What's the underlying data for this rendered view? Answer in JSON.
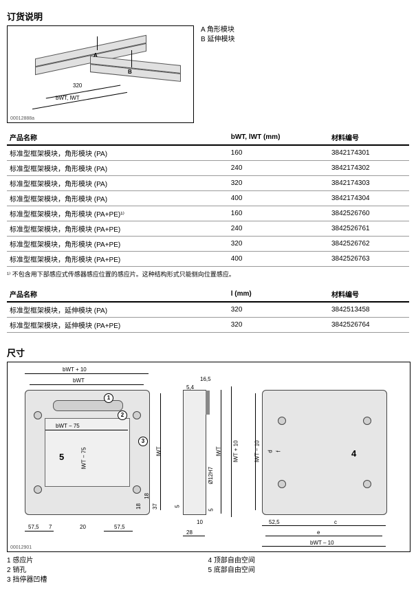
{
  "section_order": {
    "title": "订货说明"
  },
  "top_legend": {
    "a": "A 角形模块",
    "b": "B 延伸模块"
  },
  "top_diagram": {
    "ref": "00012888a",
    "label_a": "A",
    "label_b": "B",
    "dim_320": "320",
    "dim_bwt_lwt": "bWT, lWT"
  },
  "table1": {
    "headers": {
      "name": "产品名称",
      "dim": "bWT, lWT (mm)",
      "part": "材料编号"
    },
    "rows": [
      {
        "name": "标准型框架模块，角形模块 (PA)",
        "dim": "160",
        "part": "3842174301"
      },
      {
        "name": "标准型框架模块，角形模块 (PA)",
        "dim": "240",
        "part": "3842174302"
      },
      {
        "name": "标准型框架模块，角形模块 (PA)",
        "dim": "320",
        "part": "3842174303"
      },
      {
        "name": "标准型框架模块，角形模块 (PA)",
        "dim": "400",
        "part": "3842174304"
      },
      {
        "name": "标准型框架模块，角形模块 (PA+PE)¹⁾",
        "dim": "160",
        "part": "3842526760"
      },
      {
        "name": "标准型框架模块，角形模块 (PA+PE)",
        "dim": "240",
        "part": "3842526761"
      },
      {
        "name": "标准型框架模块，角形模块 (PA+PE)",
        "dim": "320",
        "part": "3842526762"
      },
      {
        "name": "标准型框架模块，角形模块 (PA+PE)",
        "dim": "400",
        "part": "3842526763"
      }
    ]
  },
  "footnote1": "¹⁾ 不包含用下部感应式传感器感应位置的感应片。这种结构形式只能侧向位置感应。",
  "table2": {
    "headers": {
      "name": "产品名称",
      "dim": "l (mm)",
      "part": "材料编号"
    },
    "rows": [
      {
        "name": "标准型框架模块，延伸模块 (PA)",
        "dim": "320",
        "part": "3842513458"
      },
      {
        "name": "标准型框架模块，延伸模块 (PA+PE)",
        "dim": "320",
        "part": "3842526764"
      }
    ]
  },
  "section_dims": {
    "title": "尺寸"
  },
  "dims_diagram": {
    "ref": "00012901",
    "labels": {
      "bwt_plus10": "bWT + 10",
      "bwt": "bWT",
      "bwt_minus75": "bWT − 75",
      "lwt": "lWT",
      "lwt_minus75": "lWT − 75",
      "lwt_plus10": "lWT + 10",
      "lwt_minus10": "lWT − 10",
      "bwt_minus10": "bWT – 10",
      "c1": "1",
      "c2": "2",
      "c3": "3",
      "c4": "4",
      "c5": "5",
      "n16_5": "16,5",
      "n5_4": "5,4",
      "n57_5a": "57,5",
      "n57_5b": "57,5",
      "n7": "7",
      "n20": "20",
      "n18a": "18",
      "n18b": "18",
      "n37": "37",
      "n5a": "5",
      "n5b": "5",
      "n10": "10",
      "n28": "28",
      "d12h7": "Ø12H7",
      "d": "d",
      "f": "f",
      "c": "c",
      "e": "e",
      "n52_5": "52,5"
    }
  },
  "callouts": {
    "c1": "1 感应片",
    "c2": "2 销孔",
    "c3": "3 挡停器凹槽",
    "c4": "4 顶部自由空间",
    "c5": "5 底部自由空间"
  },
  "colors": {
    "fill": "#e6e6e6",
    "line": "#444444"
  }
}
